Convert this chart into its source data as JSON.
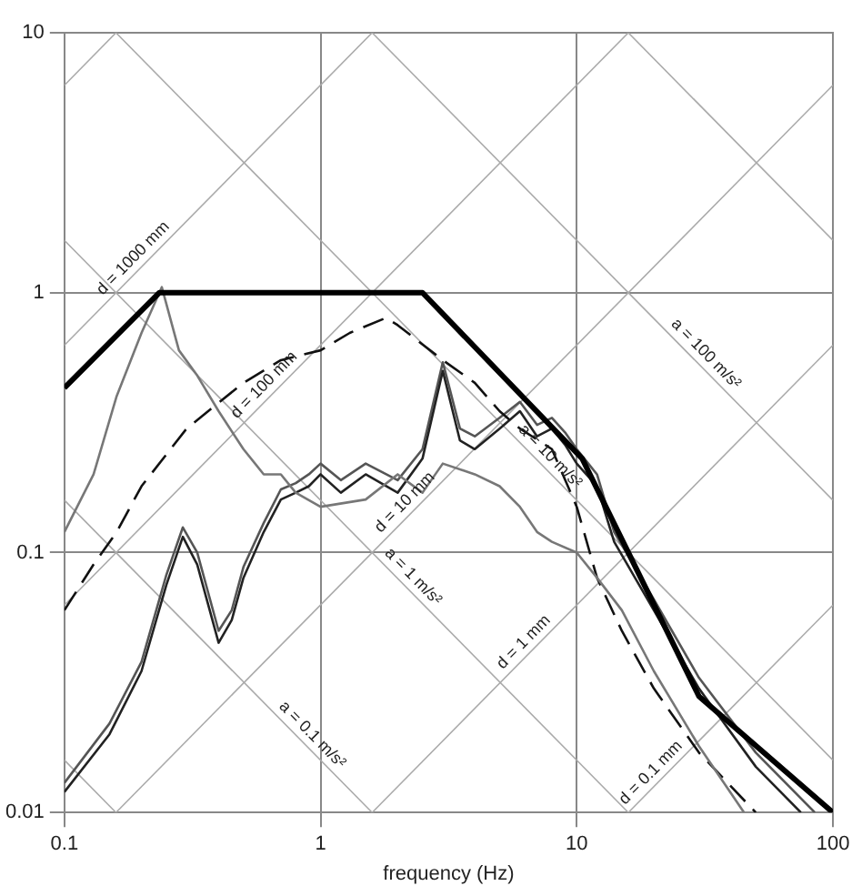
{
  "chart_data": {
    "type": "line",
    "xlabel": "frequency (Hz)",
    "log": "xy",
    "grid": true,
    "legend": false,
    "marker": "none",
    "xlim": [
      0.1,
      100
    ],
    "xticks": [
      0.1,
      1,
      10,
      100
    ],
    "ylim": [
      0.01,
      10
    ],
    "yticks": [
      0.01,
      0.1,
      1,
      10
    ],
    "series": [
      {
        "color": "#000000",
        "x": [
          0.1,
          0.235,
          2.5,
          10.5,
          30,
          100
        ],
        "values": [
          0.43,
          1,
          1,
          0.23,
          0.028,
          0.01
        ]
      },
      {
        "color": "#777777",
        "x": [
          0.1,
          0.13,
          0.16,
          0.2,
          0.24,
          0.28,
          0.33,
          0.4,
          0.5,
          0.6,
          0.7,
          0.8,
          1,
          1.5,
          2,
          2.5,
          3,
          4,
          5,
          6,
          7,
          8,
          10,
          12,
          15,
          20,
          30,
          45
        ],
        "values": [
          0.12,
          0.2,
          0.4,
          0.7,
          1.05,
          0.6,
          0.48,
          0.35,
          0.25,
          0.2,
          0.2,
          0.17,
          0.15,
          0.16,
          0.2,
          0.17,
          0.22,
          0.2,
          0.18,
          0.15,
          0.12,
          0.11,
          0.1,
          0.08,
          0.06,
          0.035,
          0.018,
          0.01
        ]
      },
      {
        "color": "#111111",
        "line_style": "dashed",
        "x": [
          0.1,
          0.13,
          0.16,
          0.2,
          0.3,
          0.5,
          0.7,
          1,
          1.3,
          1.8,
          2,
          3,
          4,
          5,
          6,
          8,
          10,
          12,
          15,
          20,
          30,
          50
        ],
        "values": [
          0.06,
          0.09,
          0.12,
          0.18,
          0.3,
          0.45,
          0.55,
          0.6,
          0.7,
          0.8,
          0.75,
          0.55,
          0.45,
          0.35,
          0.3,
          0.25,
          0.15,
          0.08,
          0.05,
          0.03,
          0.017,
          0.01
        ]
      },
      {
        "color": "#222222",
        "x": [
          0.1,
          0.15,
          0.2,
          0.25,
          0.29,
          0.33,
          0.4,
          0.45,
          0.5,
          0.6,
          0.7,
          0.8,
          0.9,
          1,
          1.2,
          1.5,
          2,
          2.5,
          3,
          3.5,
          4,
          5,
          6,
          7,
          8,
          9,
          10,
          12,
          14,
          20,
          30,
          50,
          75
        ],
        "values": [
          0.012,
          0.02,
          0.035,
          0.075,
          0.115,
          0.09,
          0.045,
          0.055,
          0.08,
          0.12,
          0.16,
          0.17,
          0.18,
          0.2,
          0.17,
          0.2,
          0.17,
          0.23,
          0.5,
          0.27,
          0.25,
          0.3,
          0.35,
          0.28,
          0.3,
          0.26,
          0.22,
          0.18,
          0.11,
          0.06,
          0.03,
          0.015,
          0.01
        ]
      },
      {
        "color": "#555555",
        "x": [
          0.1,
          0.15,
          0.2,
          0.25,
          0.29,
          0.33,
          0.4,
          0.45,
          0.5,
          0.6,
          0.7,
          0.8,
          0.9,
          1,
          1.2,
          1.5,
          2,
          2.5,
          3,
          3.5,
          4,
          5,
          6,
          7,
          8,
          9,
          10,
          12,
          14,
          20,
          30,
          50,
          85
        ],
        "values": [
          0.013,
          0.022,
          0.038,
          0.082,
          0.125,
          0.1,
          0.05,
          0.06,
          0.088,
          0.13,
          0.175,
          0.185,
          0.2,
          0.22,
          0.19,
          0.22,
          0.19,
          0.25,
          0.54,
          0.3,
          0.28,
          0.33,
          0.38,
          0.31,
          0.33,
          0.29,
          0.25,
          0.2,
          0.12,
          0.066,
          0.033,
          0.017,
          0.01
        ]
      },
      {
        "color": "#aaaaaa",
        "x": [
          0.1,
          0.159
        ],
        "values": [
          6.28,
          10
        ]
      },
      {
        "color": "#aaaaaa",
        "x": [
          0.1,
          1.59
        ],
        "values": [
          0.628,
          10
        ]
      },
      {
        "color": "#aaaaaa",
        "x": [
          0.1,
          15.9
        ],
        "values": [
          0.0628,
          10
        ]
      },
      {
        "color": "#aaaaaa",
        "x": [
          0.159,
          100
        ],
        "values": [
          0.01,
          6.28
        ]
      },
      {
        "color": "#aaaaaa",
        "x": [
          1.59,
          100
        ],
        "values": [
          0.01,
          0.628
        ]
      },
      {
        "color": "#aaaaaa",
        "x": [
          15.9,
          100
        ],
        "values": [
          0.01,
          0.0628
        ]
      },
      {
        "color": "#aaaaaa",
        "x": [
          0.1,
          0.159
        ],
        "values": [
          0.0159,
          0.01
        ]
      },
      {
        "color": "#aaaaaa",
        "x": [
          0.1,
          1.59
        ],
        "values": [
          0.159,
          0.01
        ]
      },
      {
        "color": "#aaaaaa",
        "x": [
          0.1,
          15.9
        ],
        "values": [
          1.59,
          0.01
        ]
      },
      {
        "color": "#aaaaaa",
        "x": [
          0.159,
          100
        ],
        "values": [
          10,
          0.0159
        ]
      },
      {
        "color": "#aaaaaa",
        "x": [
          1.59,
          100
        ],
        "values": [
          10,
          0.159
        ]
      },
      {
        "color": "#aaaaaa",
        "x": [
          15.9,
          100
        ],
        "values": [
          10,
          1.59
        ]
      }
    ],
    "annotations": [
      {
        "text": "d = 1000 mm",
        "x": 0.2,
        "y": 1.26
      },
      {
        "text": "d = 100 mm",
        "x": 0.65,
        "y": 0.41
      },
      {
        "text": "d = 10 mm",
        "x": 2.3,
        "y": 0.145
      },
      {
        "text": "d = 1 mm",
        "x": 6.7,
        "y": 0.042
      },
      {
        "text": "d = 0.1 mm",
        "x": 21,
        "y": 0.0132
      },
      {
        "text": "a = 100 m/s²",
        "x": 29.6,
        "y": 0.54
      },
      {
        "text": "a = 10 m/s²",
        "x": 7.3,
        "y": 0.218
      },
      {
        "text": "a = 1 m/s²",
        "x": 2.13,
        "y": 0.075
      },
      {
        "text": "a = 0.1 m/s²",
        "x": 0.86,
        "y": 0.0185
      }
    ]
  }
}
